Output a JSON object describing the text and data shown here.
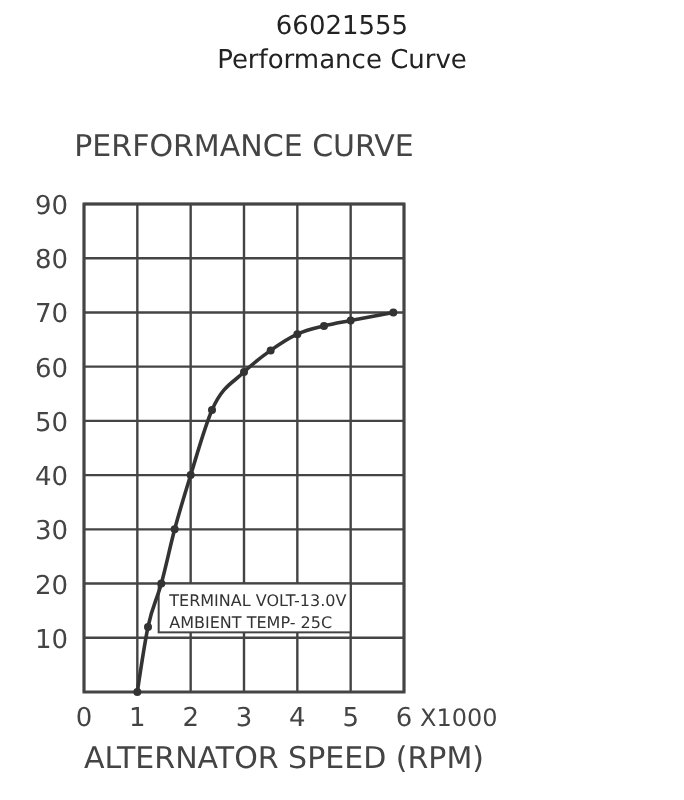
{
  "chart_data": {
    "type": "line",
    "title": "66021555\nPerformance Curve",
    "subtitle": "PERFORMANCE CURVE",
    "xlabel": "ALTERNATOR SPEED (RPM)",
    "annotations": [
      "X1000",
      "TERMINAL VOLT-13.0V",
      "AMBIENT TEMP- 25C"
    ],
    "series": [
      {
        "color": "#333333",
        "x": [
          1,
          1.2,
          1.45,
          1.7,
          2,
          2.4,
          3,
          3.5,
          4,
          4.5,
          5,
          5.8
        ],
        "values": [
          0,
          12,
          20,
          30,
          40,
          52,
          59,
          63,
          66,
          67.5,
          68.5,
          70
        ]
      }
    ],
    "xlim": [
      0,
      6
    ],
    "xticks": [
      0,
      1,
      2,
      3,
      4,
      5,
      6
    ],
    "ylim": [
      0,
      90
    ],
    "yticks": [
      10,
      20,
      30,
      40,
      50,
      60,
      70,
      80,
      90
    ],
    "grid": true,
    "marker": "circle",
    "line_style": "solid"
  }
}
